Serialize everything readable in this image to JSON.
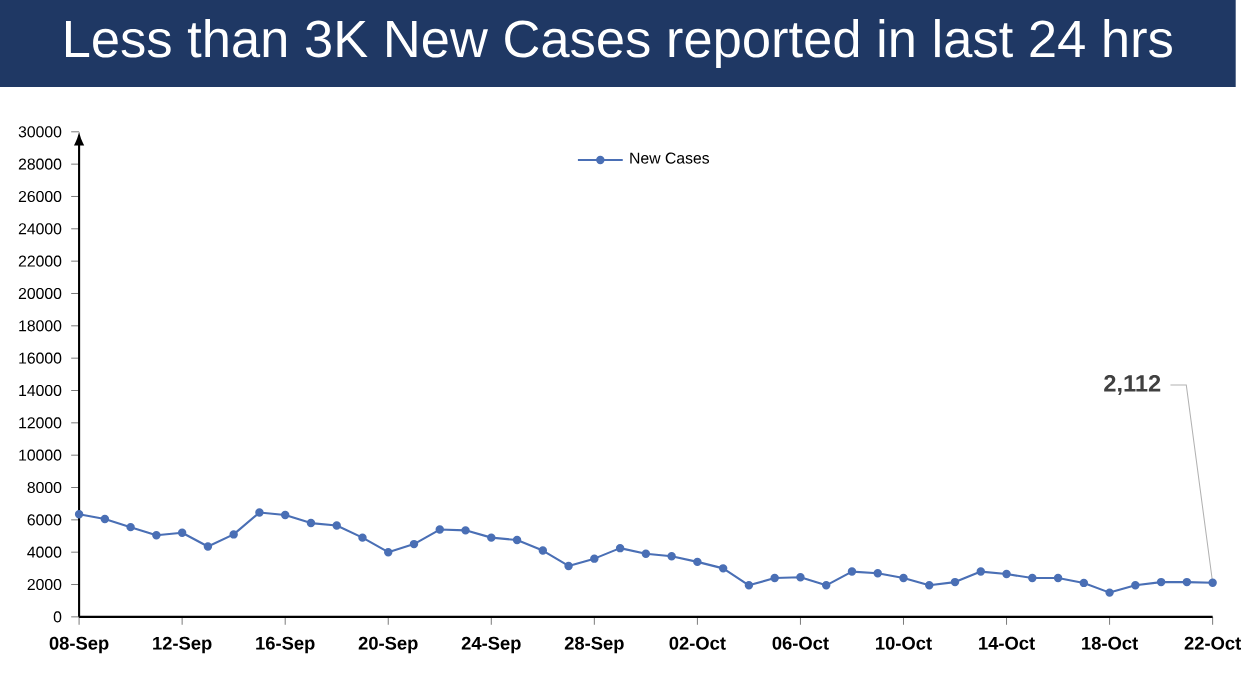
{
  "chart_data": {
    "type": "line",
    "title": "Less than 3K New Cases reported in last 24 hrs",
    "categories": [
      "08-Sep",
      null,
      null,
      null,
      "12-Sep",
      null,
      null,
      null,
      "16-Sep",
      null,
      null,
      null,
      "20-Sep",
      null,
      null,
      null,
      "24-Sep",
      null,
      null,
      null,
      "28-Sep",
      null,
      null,
      null,
      "02-Oct",
      null,
      null,
      null,
      "06-Oct",
      null,
      null,
      null,
      "10-Oct",
      null,
      null,
      null,
      "14-Oct",
      null,
      null,
      null,
      "18-Oct",
      null,
      null,
      null,
      "22-Oct"
    ],
    "series": [
      {
        "name": "New Cases",
        "color": "#4a6fb5",
        "values": [
          6350,
          6050,
          5550,
          5050,
          5200,
          4350,
          5100,
          6450,
          6300,
          5800,
          5650,
          4900,
          4000,
          4500,
          5400,
          5350,
          4900,
          4750,
          4100,
          3150,
          3600,
          4250,
          3900,
          3750,
          3400,
          3000,
          1950,
          2400,
          2450,
          1950,
          2800,
          2700,
          2400,
          1950,
          2150,
          2800,
          2650,
          2400,
          2400,
          2100,
          1500,
          1950,
          2150,
          2150,
          2112
        ]
      }
    ],
    "ylim": [
      0,
      30000
    ],
    "yticks": [
      0,
      2000,
      4000,
      6000,
      8000,
      10000,
      12000,
      14000,
      16000,
      18000,
      20000,
      22000,
      24000,
      26000,
      28000,
      30000
    ],
    "annotations": [
      {
        "text": "2,112",
        "x": "22-Oct",
        "y": 2112
      }
    ],
    "legend": "top",
    "marker": "circle",
    "grid": false
  }
}
